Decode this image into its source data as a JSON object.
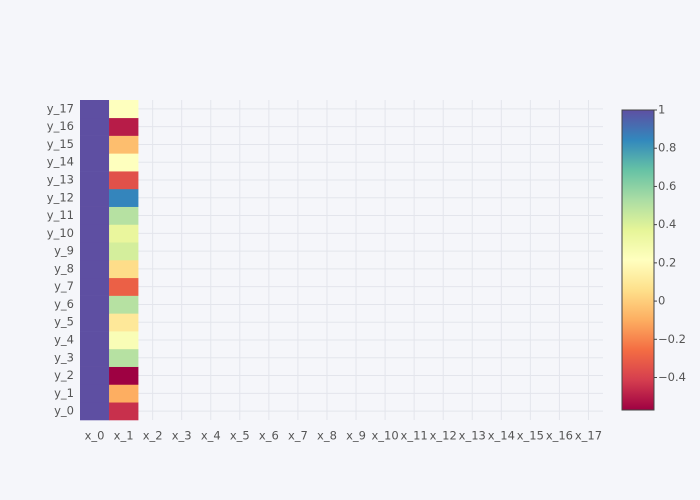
{
  "chart_data": {
    "type": "heatmap",
    "x": [
      "x_0",
      "x_1",
      "x_2",
      "x_3",
      "x_4",
      "x_5",
      "x_6",
      "x_7",
      "x_8",
      "x_9",
      "x_10",
      "x_11",
      "x_12",
      "x_13",
      "x_14",
      "x_15",
      "x_16",
      "x_17"
    ],
    "y": [
      "y_0",
      "y_1",
      "y_2",
      "y_3",
      "y_4",
      "y_5",
      "y_6",
      "y_7",
      "y_8",
      "y_9",
      "y_10",
      "y_11",
      "y_12",
      "y_13",
      "y_14",
      "y_15",
      "y_16",
      "y_17"
    ],
    "z": [
      [
        1,
        -0.45,
        null,
        null,
        null,
        null,
        null,
        null,
        null,
        null,
        null,
        null,
        null,
        null,
        null,
        null,
        null,
        null
      ],
      [
        1,
        -0.1,
        null,
        null,
        null,
        null,
        null,
        null,
        null,
        null,
        null,
        null,
        null,
        null,
        null,
        null,
        null,
        null
      ],
      [
        1,
        -0.57,
        null,
        null,
        null,
        null,
        null,
        null,
        null,
        null,
        null,
        null,
        null,
        null,
        null,
        null,
        null,
        null
      ],
      [
        1,
        0.5,
        null,
        null,
        null,
        null,
        null,
        null,
        null,
        null,
        null,
        null,
        null,
        null,
        null,
        null,
        null,
        null
      ],
      [
        1,
        0.25,
        null,
        null,
        null,
        null,
        null,
        null,
        null,
        null,
        null,
        null,
        null,
        null,
        null,
        null,
        null,
        null
      ],
      [
        1,
        0.1,
        null,
        null,
        null,
        null,
        null,
        null,
        null,
        null,
        null,
        null,
        null,
        null,
        null,
        null,
        null,
        null
      ],
      [
        1,
        0.5,
        null,
        null,
        null,
        null,
        null,
        null,
        null,
        null,
        null,
        null,
        null,
        null,
        null,
        null,
        null,
        null
      ],
      [
        1,
        -0.3,
        null,
        null,
        null,
        null,
        null,
        null,
        null,
        null,
        null,
        null,
        null,
        null,
        null,
        null,
        null,
        null
      ],
      [
        1,
        0.05,
        null,
        null,
        null,
        null,
        null,
        null,
        null,
        null,
        null,
        null,
        null,
        null,
        null,
        null,
        null,
        null
      ],
      [
        1,
        0.42,
        null,
        null,
        null,
        null,
        null,
        null,
        null,
        null,
        null,
        null,
        null,
        null,
        null,
        null,
        null,
        null
      ],
      [
        1,
        0.35,
        null,
        null,
        null,
        null,
        null,
        null,
        null,
        null,
        null,
        null,
        null,
        null,
        null,
        null,
        null,
        null
      ],
      [
        1,
        0.5,
        null,
        null,
        null,
        null,
        null,
        null,
        null,
        null,
        null,
        null,
        null,
        null,
        null,
        null,
        null,
        null
      ],
      [
        1,
        0.85,
        null,
        null,
        null,
        null,
        null,
        null,
        null,
        null,
        null,
        null,
        null,
        null,
        null,
        null,
        null,
        null
      ],
      [
        1,
        -0.35,
        null,
        null,
        null,
        null,
        null,
        null,
        null,
        null,
        null,
        null,
        null,
        null,
        null,
        null,
        null,
        null
      ],
      [
        1,
        0.22,
        null,
        null,
        null,
        null,
        null,
        null,
        null,
        null,
        null,
        null,
        null,
        null,
        null,
        null,
        null,
        null
      ],
      [
        1,
        -0.05,
        null,
        null,
        null,
        null,
        null,
        null,
        null,
        null,
        null,
        null,
        null,
        null,
        null,
        null,
        null,
        null
      ],
      [
        1,
        -0.5,
        null,
        null,
        null,
        null,
        null,
        null,
        null,
        null,
        null,
        null,
        null,
        null,
        null,
        null,
        null,
        null
      ],
      [
        1,
        0.22,
        null,
        null,
        null,
        null,
        null,
        null,
        null,
        null,
        null,
        null,
        null,
        null,
        null,
        null,
        null,
        null
      ]
    ],
    "zlim": [
      -0.57,
      1
    ],
    "zticks": [
      1,
      0.8,
      0.6,
      0.4,
      0.2,
      0,
      {
        "value": -0.2,
        "label": "−0.2"
      },
      {
        "value": -0.4,
        "label": "−0.4"
      }
    ],
    "colorscale": [
      "#9e0142",
      "#d53e4f",
      "#f46d43",
      "#fdae61",
      "#fee08b",
      "#ffffbf",
      "#e6f598",
      "#abdda4",
      "#66c2a5",
      "#3288bd",
      "#5e4fa2"
    ],
    "grid": true
  }
}
